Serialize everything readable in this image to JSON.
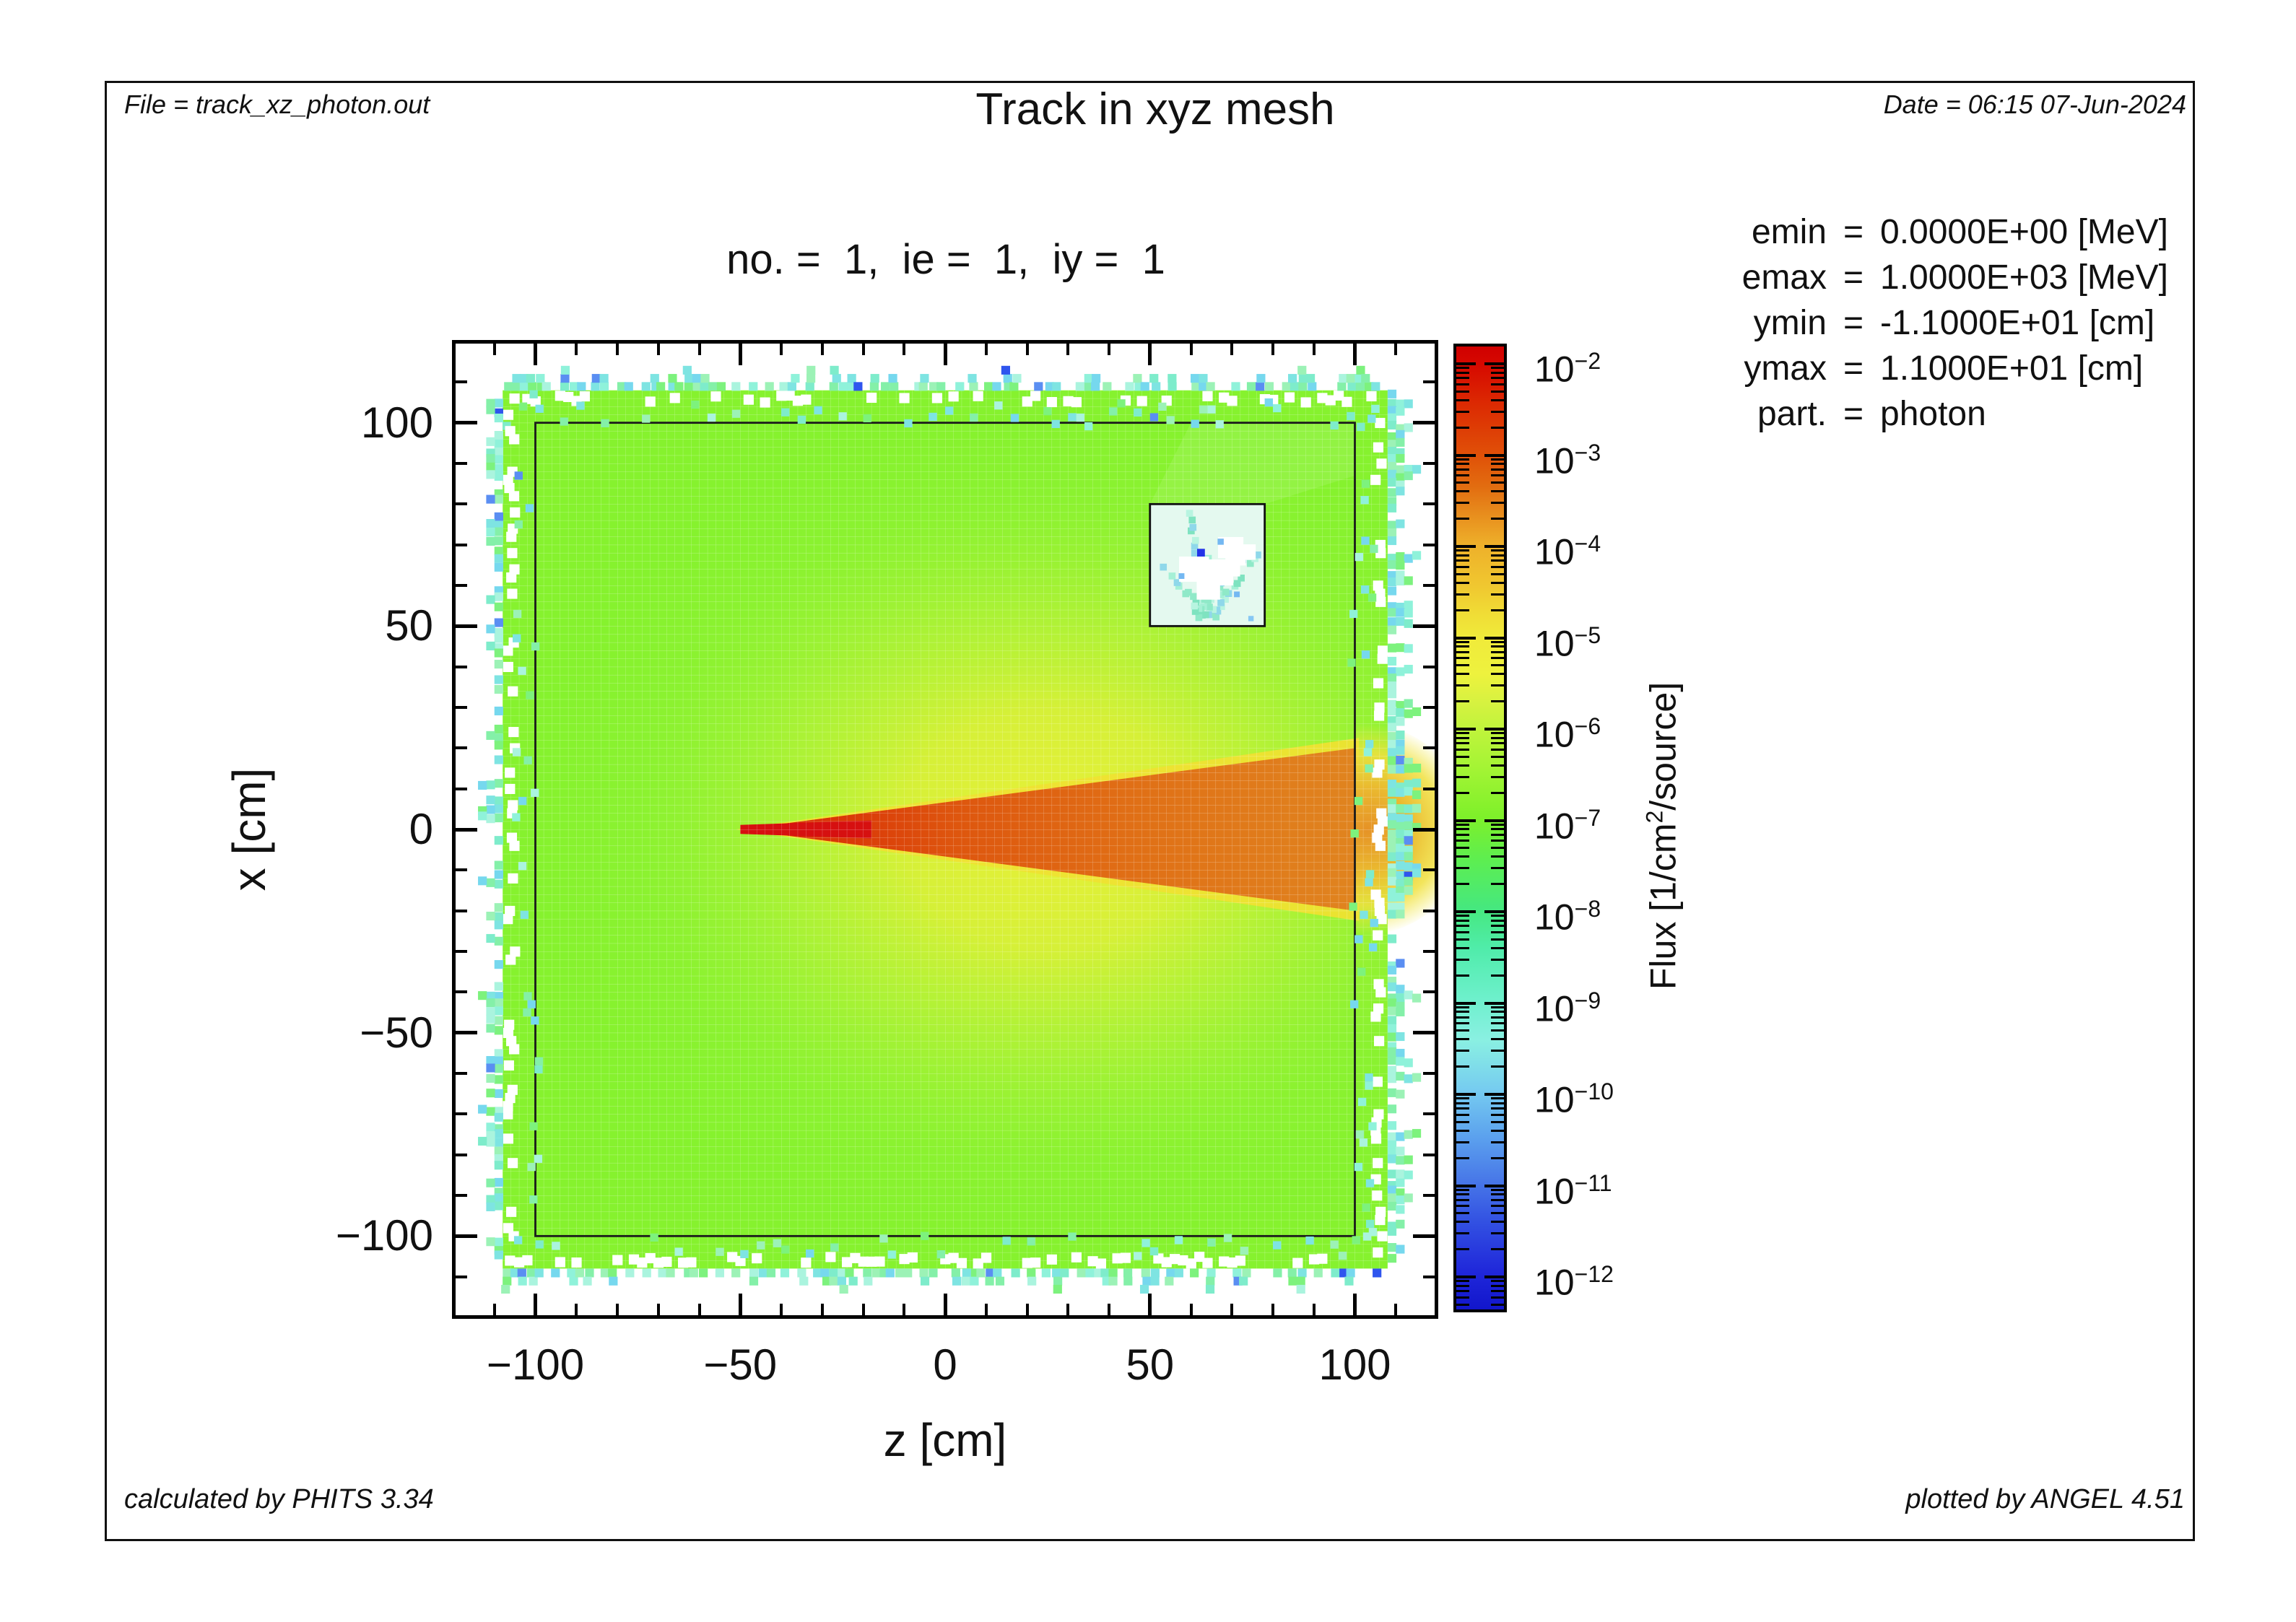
{
  "header": {
    "file": "File = track_xz_photon.out",
    "title": "Track in xyz mesh",
    "date": "Date = 06:15 07-Jun-2024"
  },
  "subtitle": "no. =  1,  ie =  1,  iy =  1",
  "info": {
    "rows": [
      {
        "name": "emin",
        "eq": "=",
        "value": "0.0000E+00 [MeV]"
      },
      {
        "name": "emax",
        "eq": "=",
        "value": "1.0000E+03 [MeV]"
      },
      {
        "name": "ymin",
        "eq": "=",
        "value": "-1.1000E+01 [cm]"
      },
      {
        "name": "ymax",
        "eq": "=",
        "value": "1.1000E+01 [cm]"
      },
      {
        "name": "part.",
        "eq": "=",
        "value": "photon"
      }
    ]
  },
  "footer": {
    "calculated": "calculated by PHITS 3.34",
    "plotted": "plotted by ANGEL 4.51"
  },
  "chart_data": {
    "type": "heatmap",
    "title": "Track in xyz mesh",
    "subtitle": "no. = 1, ie = 1, iy = 1",
    "xlabel": "z [cm]",
    "ylabel": "x [cm]",
    "xlim": [
      -120,
      120
    ],
    "ylim": [
      -120,
      120
    ],
    "x_major_ticks": [
      -100,
      -50,
      0,
      50,
      100
    ],
    "x_tick_labels": [
      "−100",
      "−50",
      "0",
      "50",
      "100"
    ],
    "y_major_ticks": [
      -100,
      -50,
      0,
      50,
      100
    ],
    "y_tick_labels": [
      "−100",
      "−50",
      "0",
      "50",
      "100"
    ],
    "minor_tick_step": 10,
    "grid": false,
    "colorbar": {
      "scale": "log",
      "tick_base": "10",
      "tick_exponents": [
        -2,
        -3,
        -4,
        -5,
        -6,
        -7,
        -8,
        -9,
        -10,
        -11,
        -12
      ],
      "title_prefix": "Flux [1/cm",
      "title_sup": "2",
      "title_suffix": "/source]",
      "top_color": "#d00000",
      "bottom_color": "#1216cc",
      "position": "right"
    },
    "regions": [
      {
        "name": "shield-block",
        "z_range": [
          -100,
          100
        ],
        "x_range": [
          -100,
          100
        ],
        "description": "large outlined shield cube filled with green flux",
        "flux_level": "~1e-7 at edges to ~1e-5 (yellow-green) near the beam"
      },
      {
        "name": "beam-cone",
        "apex": {
          "z": -50,
          "x": 0
        },
        "base_z": 100,
        "half_width_at_base_cm": 20,
        "description": "orange conical photon beam widening toward +z, yellow fringe",
        "flux_level": "~1e-3 body (orange), yellow rim ~1e-4"
      },
      {
        "name": "beam-core-line",
        "z_range": [
          -50,
          -18
        ],
        "x_range": [
          -1.2,
          1.2
        ],
        "description": "bright red source line at cone apex",
        "flux_level": "~1e-2 (red)"
      },
      {
        "name": "void-window",
        "z_range": [
          50,
          78
        ],
        "x_range": [
          50,
          80
        ],
        "description": "outlined low-flux box with white gaps and teal ray streaks and sparse blue cells",
        "flux_level": "~1e-9 to below 1e-12 (white = under scale)"
      },
      {
        "name": "beam-exit-hotspot",
        "z_range": [
          100,
          112
        ],
        "x_range": [
          -25,
          25
        ],
        "description": "orange-yellow glow where the cone exits the shield at z=100",
        "flux_level": "~1e-3 to 1e-4"
      },
      {
        "name": "exterior-leakage-noise",
        "description": "ragged speckled band of statistical noise outside the shield on all sides, thicker on +z side",
        "flux_level": "~1e-8 to 1e-10 (green/teal/cyan), rare blue ~1e-11"
      }
    ]
  }
}
